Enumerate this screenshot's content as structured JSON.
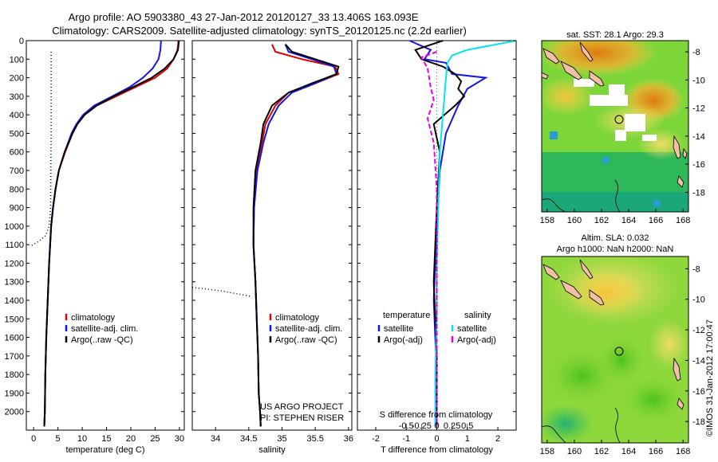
{
  "header": {
    "line1": "Argo profile: AO 5903380_43 27-Jan-2012 20120127_33 13.406S 163.093E",
    "line2": "Climatology: CARS2009. Satellite-adjusted climatology: synTS_20120125.nc (2.2d earlier)"
  },
  "colors": {
    "red": "#e00000",
    "blue": "#1515e8",
    "black": "#000000",
    "cyan": "#00e5f0",
    "magenta": "#e600e6"
  },
  "chart_data": [
    {
      "type": "line",
      "id": "temperature",
      "xlabel": "temperature (deg C)",
      "ylabel": "",
      "xlim": [
        -1.5,
        31
      ],
      "ylim": [
        2100,
        0
      ],
      "xticks": [
        0,
        5,
        10,
        15,
        20,
        25,
        30
      ],
      "xtick_labels": [
        "0",
        "5",
        "10",
        "15",
        "20",
        "25",
        "30"
      ],
      "yticks": [
        0,
        100,
        200,
        300,
        400,
        500,
        600,
        700,
        800,
        900,
        1000,
        1100,
        1200,
        1300,
        1400,
        1500,
        1600,
        1700,
        1800,
        1900,
        2000
      ],
      "ytick_labels": [
        "0",
        "100",
        "200",
        "300",
        "400",
        "500",
        "600",
        "700",
        "800",
        "900",
        "1000",
        "1100",
        "1200",
        "1300",
        "1400",
        "1500",
        "1600",
        "1700",
        "1800",
        "1900",
        "2000"
      ],
      "legend": [
        "climatology",
        "satellite-adj. clim.",
        "Argo(..raw -QC)"
      ],
      "legend_position": "bottom-right",
      "series": [
        {
          "name": "climatology",
          "color": "red",
          "dash": "",
          "x": [
            29.8,
            29.6,
            28.8,
            27.5,
            25,
            21,
            17,
            13,
            10.5,
            9,
            8,
            6.5,
            5.2,
            4.5,
            4,
            3.6,
            3.2,
            2.9,
            2.6,
            2.4,
            2.3,
            2.2
          ],
          "y": [
            0,
            50,
            100,
            150,
            200,
            250,
            300,
            350,
            400,
            450,
            500,
            600,
            700,
            800,
            900,
            1000,
            1200,
            1400,
            1600,
            1800,
            2000,
            2080
          ]
        },
        {
          "name": "satellite-adj. clim.",
          "color": "blue",
          "dash": "",
          "x": [
            26.2,
            26.1,
            25.7,
            24.5,
            22.5,
            19.8,
            16.2,
            12.5,
            10.2,
            8.8,
            7.8,
            6.4,
            5.2,
            4.5,
            4,
            3.6,
            3.2,
            2.9,
            2.6,
            2.4,
            2.3,
            2.2
          ],
          "y": [
            0,
            50,
            100,
            150,
            200,
            250,
            300,
            350,
            400,
            450,
            500,
            600,
            700,
            800,
            900,
            1000,
            1200,
            1400,
            1600,
            1800,
            2000,
            2080
          ]
        },
        {
          "name": "Argo(..raw -QC)",
          "color": "black",
          "dash": "",
          "x": [
            29.9,
            29.7,
            28.8,
            27,
            24.3,
            20.5,
            16.5,
            13,
            10.5,
            9,
            8,
            6.4,
            5.2,
            4.5,
            4,
            3.6,
            3.2,
            2.9,
            2.6,
            2.4,
            2.3,
            2.2
          ],
          "y": [
            0,
            50,
            100,
            150,
            200,
            250,
            300,
            350,
            400,
            450,
            500,
            600,
            700,
            800,
            900,
            1000,
            1200,
            1400,
            1600,
            1800,
            2000,
            2080
          ]
        },
        {
          "name": "mixed layer",
          "color": "black",
          "dash": "1,3",
          "x": [
            3.6,
            3.6,
            3.5,
            3.2,
            2.5,
            1.2,
            -0.8
          ],
          "y": [
            60,
            500,
            900,
            1000,
            1050,
            1080,
            1110
          ]
        }
      ],
      "annotations": []
    },
    {
      "type": "line",
      "id": "salinity",
      "xlabel": "salinity",
      "ylabel": "",
      "xlim": [
        33.65,
        36.05
      ],
      "ylim": [
        2100,
        0
      ],
      "xticks": [
        34,
        34.5,
        35,
        35.5,
        36
      ],
      "xtick_labels": [
        "34",
        "34.5",
        "35",
        "35.5",
        "36"
      ],
      "legend": [
        "climatology",
        "satellite-adj. clim.",
        "Argo(..raw -QC)"
      ],
      "legend_position": "bottom-right",
      "series": [
        {
          "name": "climatology",
          "color": "red",
          "dash": "",
          "x": [
            34.85,
            34.9,
            35.3,
            35.8,
            35.85,
            35.5,
            35.1,
            34.9,
            34.75,
            34.7,
            34.62,
            34.58,
            34.57,
            34.6,
            34.62,
            34.64,
            34.65,
            34.67,
            34.68
          ],
          "y": [
            20,
            60,
            100,
            140,
            180,
            230,
            280,
            350,
            450,
            550,
            700,
            900,
            1100,
            1300,
            1500,
            1700,
            1900,
            2000,
            2080
          ]
        },
        {
          "name": "satellite-adj. clim.",
          "color": "blue",
          "dash": "",
          "x": [
            35.05,
            35.1,
            35.45,
            35.78,
            35.82,
            35.5,
            35.15,
            34.95,
            34.8,
            34.72,
            34.63,
            34.58,
            34.57,
            34.6,
            34.62,
            34.64,
            34.65,
            34.67,
            34.68
          ],
          "y": [
            20,
            60,
            100,
            140,
            180,
            230,
            280,
            350,
            450,
            550,
            700,
            900,
            1100,
            1300,
            1500,
            1700,
            1900,
            2000,
            2080
          ]
        },
        {
          "name": "Argo(..raw -QC)",
          "color": "black",
          "dash": "",
          "x": [
            35.05,
            35.15,
            35.5,
            35.85,
            35.82,
            35.45,
            35.1,
            34.85,
            34.72,
            34.68,
            34.6,
            34.57,
            34.57,
            34.6,
            34.62,
            34.64,
            34.65,
            34.67,
            34.68
          ],
          "y": [
            20,
            60,
            100,
            140,
            180,
            230,
            280,
            350,
            450,
            550,
            700,
            900,
            1100,
            1300,
            1500,
            1700,
            1900,
            2000,
            2080
          ]
        },
        {
          "name": "marker",
          "color": "black",
          "dash": "1,3",
          "x": [
            33.65,
            34.1,
            34.55
          ],
          "y": [
            1330,
            1350,
            1380
          ]
        }
      ],
      "annotations": [
        "US ARGO PROJECT",
        "PI: STEPHEN RISER"
      ]
    },
    {
      "type": "line",
      "id": "difference",
      "xlabel": "T difference from climatology",
      "top_xlabel": "S difference from climatology",
      "ylabel": "",
      "xlim": [
        -2.6,
        2.6
      ],
      "ylim": [
        2100,
        0
      ],
      "xticks": [
        -2,
        -1,
        0,
        1,
        2
      ],
      "xtick_labels": [
        "-2",
        "-1",
        "0",
        "1",
        "2"
      ],
      "top_xticks": [
        -1,
        -0.5,
        0,
        0.5,
        1
      ],
      "top_xtick_labels": [
        "-0.5",
        "-0.25",
        "0",
        "0.25",
        "0.5"
      ],
      "legend_titles": [
        "temperature",
        "salinity"
      ],
      "legend": [
        "satellite",
        "Argo(-adj)",
        "satellite",
        "Argo(-adj)"
      ],
      "legend_position": "bottom",
      "series": [
        {
          "name": "T satellite",
          "color": "blue",
          "dash": "",
          "x": [
            -0.9,
            -0.2,
            -0.4,
            0.3,
            0.4,
            0.5,
            1.6,
            1.0,
            0.7,
            0.3,
            0.1,
            0,
            -0.1,
            0,
            0
          ],
          "y": [
            0,
            50,
            100,
            120,
            150,
            180,
            200,
            260,
            350,
            500,
            700,
            1000,
            1400,
            1800,
            2080
          ]
        },
        {
          "name": "T Argo(-adj)",
          "color": "black",
          "dash": "",
          "x": [
            0.2,
            -0.7,
            -0.5,
            0.2,
            0.6,
            0.8,
            0.7,
            0.9,
            0.6,
            -0.1,
            0.1,
            0,
            -0.1,
            0,
            0
          ],
          "y": [
            0,
            50,
            100,
            140,
            180,
            220,
            260,
            300,
            350,
            450,
            600,
            900,
            1300,
            1700,
            2080
          ]
        },
        {
          "name": "S satellite",
          "color": "cyan",
          "dash": "",
          "x": [
            2.6,
            1.0,
            0.5,
            0.35,
            0.3,
            0.25,
            0.2,
            0.1,
            0.05,
            0,
            0,
            -0.05,
            -0.05
          ],
          "y": [
            0,
            50,
            80,
            120,
            200,
            300,
            400,
            600,
            900,
            1200,
            1500,
            1800,
            2080
          ]
        },
        {
          "name": "S Argo(-adj)",
          "color": "magenta",
          "dash": "6,3",
          "x": [
            0,
            -0.5,
            -0.3,
            -0.2,
            -0.1,
            -0.3,
            -0.1,
            0,
            0,
            0,
            0
          ],
          "y": [
            60,
            90,
            150,
            250,
            320,
            420,
            550,
            800,
            1200,
            1600,
            2080
          ]
        }
      ],
      "annotations": []
    }
  ],
  "maps": [
    {
      "id": "sst-map",
      "title": "sat. SST: 28.1  Argo: 29.3",
      "subtitle": "",
      "lon_ticks": [
        "158",
        "160",
        "162",
        "164",
        "166",
        "168"
      ],
      "lat_ticks": [
        "-8",
        "-10",
        "-12",
        "-14",
        "-16",
        "-18"
      ],
      "profile_lon": 163.1,
      "profile_lat": -13.4
    },
    {
      "id": "sla-map",
      "title": "Altim. SLA: 0.032",
      "subtitle": "Argo h1000: NaN h2000: NaN",
      "lon_ticks": [
        "158",
        "160",
        "162",
        "164",
        "166",
        "168"
      ],
      "lat_ticks": [
        "-8",
        "-10",
        "-12",
        "-14",
        "-16",
        "-18"
      ],
      "profile_lon": 163.1,
      "profile_lat": -13.4
    }
  ],
  "footer": {
    "credit": "©IMOS 31-Jan-2012 17:00:47"
  }
}
